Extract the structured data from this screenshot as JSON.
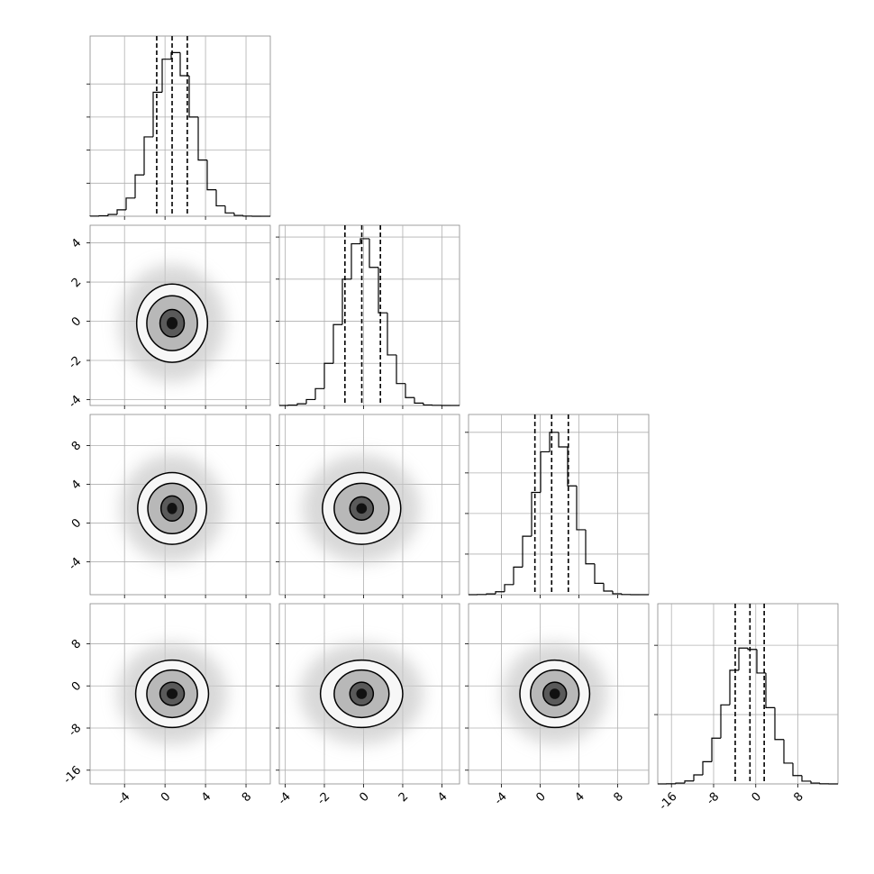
{
  "chart_data": {
    "type": "corner",
    "color": "#000000",
    "grid": true,
    "parameters": [
      {
        "lim": [
          -7.4,
          10.4
        ],
        "ticks": [
          -4,
          0,
          4,
          8
        ],
        "quantiles": [
          -0.82,
          0.7,
          2.2
        ],
        "bins": [
          -7.4,
          -6.51,
          -5.62,
          -4.73,
          -3.84,
          -2.95,
          -2.06,
          -1.17,
          -0.28,
          0.61,
          1.5,
          2.39,
          3.28,
          4.17,
          5.06,
          5.95,
          6.84,
          7.73,
          8.62,
          9.51,
          10.4
        ],
        "counts": [
          1,
          3,
          11,
          39,
          110,
          250,
          480,
          750,
          950,
          990,
          850,
          600,
          340,
          160,
          63,
          20,
          5,
          1,
          0,
          0
        ],
        "count_lim": [
          0,
          1090
        ],
        "count_ticks": [
          200,
          400,
          600,
          800
        ]
      },
      {
        "lim": [
          -4.3,
          4.9
        ],
        "ticks": [
          -4,
          -2,
          0,
          2,
          4
        ],
        "quantiles": [
          -0.95,
          -0.09,
          0.86
        ],
        "bins": [
          -4.3,
          -3.84,
          -3.38,
          -2.92,
          -2.46,
          -2.0,
          -1.54,
          -1.08,
          -0.62,
          -0.16,
          0.3,
          0.76,
          1.22,
          1.68,
          2.14,
          2.6,
          3.06,
          3.52,
          3.98,
          4.44,
          4.9
        ],
        "counts": [
          0,
          2,
          10,
          35,
          100,
          250,
          480,
          750,
          960,
          990,
          820,
          550,
          300,
          130,
          47,
          14,
          3,
          1,
          0,
          0
        ],
        "count_lim": [
          0,
          1070
        ],
        "count_ticks": [
          250,
          500,
          750,
          1000
        ]
      },
      {
        "lim": [
          -7.4,
          11.2
        ],
        "ticks": [
          -4,
          0,
          4,
          8
        ],
        "quantiles": [
          -0.55,
          1.18,
          2.9
        ],
        "bins": [
          -7.4,
          -6.47,
          -5.54,
          -4.61,
          -3.68,
          -2.75,
          -1.82,
          -0.89,
          0.04,
          0.97,
          1.9,
          2.83,
          3.76,
          4.69,
          5.62,
          6.55,
          7.48,
          8.41,
          9.34,
          10.27,
          11.2
        ],
        "counts": [
          0,
          1,
          5,
          18,
          62,
          170,
          360,
          630,
          880,
          1000,
          910,
          670,
          400,
          190,
          70,
          22,
          6,
          1,
          0,
          0
        ],
        "count_lim": [
          0,
          1110
        ],
        "count_ticks": [
          250,
          500,
          750,
          1000
        ]
      },
      {
        "lim": [
          -18.6,
          15.6
        ],
        "ticks": [
          -16,
          -8,
          0,
          8
        ],
        "quantiles": [
          -3.9,
          -1.1,
          1.6
        ],
        "bins": [
          -18.6,
          -16.89,
          -15.18,
          -13.47,
          -11.76,
          -10.05,
          -8.34,
          -6.63,
          -4.92,
          -3.21,
          -1.5,
          0.21,
          1.92,
          3.63,
          5.34,
          7.05,
          8.76,
          10.47,
          12.18,
          13.89,
          15.6
        ],
        "counts": [
          0,
          1,
          6,
          21,
          65,
          160,
          330,
          570,
          820,
          980,
          970,
          800,
          550,
          320,
          150,
          60,
          20,
          6,
          1,
          0
        ],
        "count_lim": [
          0,
          1300
        ],
        "count_ticks": [
          500,
          1000
        ]
      }
    ],
    "pairs": [
      {
        "center": [
          0.7,
          -0.1
        ],
        "contours": [
          {
            "rx": 3.5,
            "ry": 2.0
          },
          {
            "rx": 2.5,
            "ry": 1.4
          },
          {
            "rx": 1.2,
            "ry": 0.7
          }
        ]
      },
      {
        "center": [
          0.7,
          1.5
        ],
        "contours": [
          {
            "rx": 3.4,
            "ry": 3.7
          },
          {
            "rx": 2.4,
            "ry": 2.6
          },
          {
            "rx": 1.1,
            "ry": 1.3
          }
        ]
      },
      {
        "center": [
          -0.1,
          1.5
        ],
        "contours": [
          {
            "rx": 2.0,
            "ry": 3.7
          },
          {
            "rx": 1.4,
            "ry": 2.6
          },
          {
            "rx": 0.6,
            "ry": 1.2
          }
        ]
      },
      {
        "center": [
          0.7,
          -1.5
        ],
        "contours": [
          {
            "rx": 3.6,
            "ry": 6.4
          },
          {
            "rx": 2.5,
            "ry": 4.5
          },
          {
            "rx": 1.2,
            "ry": 2.2
          }
        ]
      },
      {
        "center": [
          -0.1,
          -1.5
        ],
        "contours": [
          {
            "rx": 2.1,
            "ry": 6.4
          },
          {
            "rx": 1.4,
            "ry": 4.5
          },
          {
            "rx": 0.6,
            "ry": 2.2
          }
        ]
      },
      {
        "center": [
          1.5,
          -1.5
        ],
        "contours": [
          {
            "rx": 3.6,
            "ry": 6.4
          },
          {
            "rx": 2.5,
            "ry": 4.5
          },
          {
            "rx": 1.2,
            "ry": 2.2
          }
        ]
      }
    ]
  }
}
